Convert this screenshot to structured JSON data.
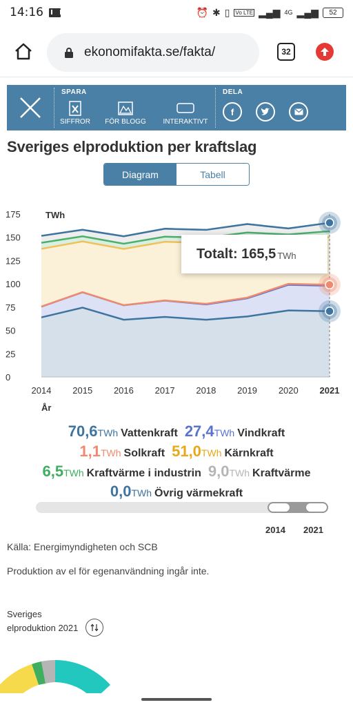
{
  "status": {
    "time": "14:16",
    "volte": "Vo LTE",
    "network": "4G",
    "battery": "52"
  },
  "browser": {
    "url": "ekonomifakta.se/fakta/",
    "tabs_count": "32"
  },
  "share": {
    "save_heading": "SPARA",
    "share_heading": "DELA",
    "items": [
      "SIFFROR",
      "FÖR BLOGG",
      "INTERAKTIVT"
    ],
    "social": [
      "facebook-icon",
      "twitter-icon",
      "email-icon"
    ]
  },
  "page": {
    "title": "Sveriges elproduktion per kraftslag",
    "toggle_diagram": "Diagram",
    "toggle_table": "Tabell"
  },
  "tooltip": {
    "label": "Totalt: 165,5",
    "unit": "TWh"
  },
  "chart_data": {
    "type": "area",
    "ylabel": "TWh",
    "xlabel": "År",
    "ylim": [
      0,
      175
    ],
    "yticks": [
      0,
      25,
      50,
      75,
      100,
      125,
      150,
      175
    ],
    "x": [
      2014,
      2015,
      2016,
      2017,
      2018,
      2019,
      2020,
      2021
    ],
    "series": [
      {
        "name": "Vattenkraft",
        "color": "#3d74a0",
        "values": [
          64,
          74.5,
          61.5,
          64.5,
          61.5,
          65,
          71.5,
          70.6
        ]
      },
      {
        "name": "Vindkraft",
        "color": "#5a72d0",
        "values": [
          11.5,
          16.5,
          15.5,
          17.5,
          16.5,
          19.5,
          27.5,
          27.4
        ]
      },
      {
        "name": "Solkraft",
        "color": "#ef8a6e",
        "values": [
          0.1,
          0.1,
          0.1,
          0.2,
          0.5,
          0.7,
          1.0,
          1.1
        ]
      },
      {
        "name": "Kärnkraft",
        "color": "#f0c05a",
        "values": [
          62,
          54.5,
          60.5,
          63,
          65.5,
          64.5,
          47,
          51.0
        ]
      },
      {
        "name": "Kraftvärme i industrin",
        "color": "#4caf6e",
        "values": [
          6.5,
          5.5,
          5.5,
          5.5,
          5.5,
          5.5,
          6,
          6.5
        ]
      },
      {
        "name": "Kraftvärme",
        "color": "#b5b5b5",
        "values": [
          7.5,
          7,
          8,
          8.5,
          8.5,
          9,
          6.5,
          9.0
        ]
      },
      {
        "name": "Övrig värmekraft",
        "color": "#3d74a0",
        "values": [
          0,
          0,
          0,
          0,
          0,
          0,
          0,
          0.0
        ]
      }
    ]
  },
  "legend": [
    {
      "value": "70,6",
      "unit": "TWh",
      "name": "Vattenkraft",
      "color": "#3d74a0"
    },
    {
      "value": "27,4",
      "unit": "TWh",
      "name": "Vindkraft",
      "color": "#5a72d0"
    },
    {
      "value": "1,1",
      "unit": "TWh",
      "name": "Solkraft",
      "color": "#ef8a6e"
    },
    {
      "value": "51,0",
      "unit": "TWh",
      "name": "Kärnkraft",
      "color": "#e8a817"
    },
    {
      "value": "6,5",
      "unit": "TWh",
      "name": "Kraftvärme i industrin",
      "color": "#3fae5e"
    },
    {
      "value": "9,0",
      "unit": "TWh",
      "name": "Kraftvärme",
      "color": "#b5b5b5"
    },
    {
      "value": "0,0",
      "unit": "TWh",
      "name": "Övrig värmekraft",
      "color": "#3d74a0"
    }
  ],
  "range": {
    "start_label": "2014",
    "end_label": "2021"
  },
  "footer": {
    "source": "Källa: Energimyndigheten och SCB",
    "note": "Produktion av el för egenanvändning ingår inte.",
    "subchart_title": "Sveriges elproduktion 2021"
  }
}
